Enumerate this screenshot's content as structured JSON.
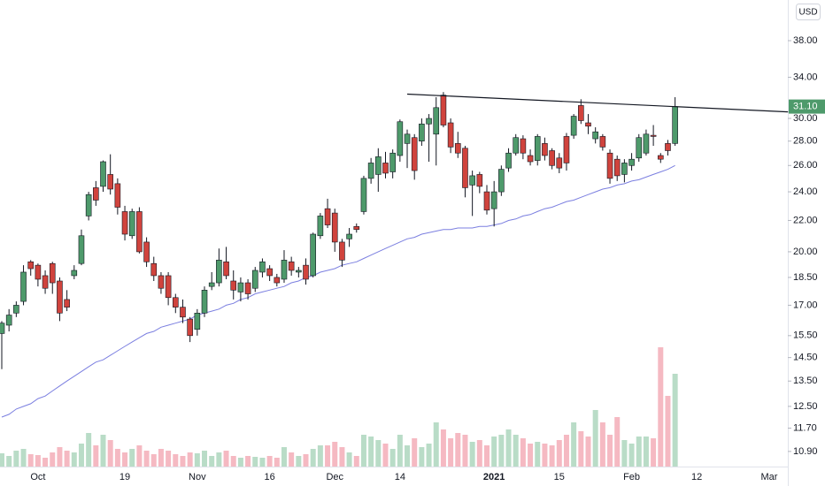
{
  "chart_data": {
    "type": "candlestick",
    "currency": "USD",
    "categories": [
      null,
      null,
      null,
      null,
      null,
      "Oct",
      null,
      null,
      null,
      null,
      null,
      null,
      null,
      null,
      null,
      null,
      null,
      "19",
      null,
      null,
      null,
      null,
      null,
      null,
      null,
      null,
      null,
      "Nov",
      null,
      null,
      null,
      null,
      null,
      null,
      null,
      null,
      null,
      "16",
      null,
      null,
      null,
      null,
      null,
      null,
      null,
      null,
      "Dec",
      null,
      null,
      null,
      null,
      null,
      null,
      null,
      null,
      "14",
      null,
      null,
      null,
      null,
      null,
      null,
      null,
      null,
      null,
      null,
      null,
      null,
      "2021",
      null,
      null,
      null,
      null,
      null,
      null,
      null,
      null,
      "15",
      null,
      null,
      null,
      null,
      null,
      null,
      null,
      null,
      null,
      "Feb",
      null,
      null,
      null,
      null,
      null,
      null,
      null,
      null,
      "12",
      null,
      null,
      null,
      null,
      null,
      null,
      null,
      null,
      null,
      "Mar",
      null,
      null
    ],
    "open": [
      15.6,
      16.0,
      16.6,
      17.2,
      19.4,
      19.2,
      18.6,
      19.3,
      18.3,
      17.3,
      18.6,
      19.3,
      22.3,
      24.3,
      24.4,
      25.3,
      24.6,
      22.6,
      21.0,
      22.6,
      20.6,
      19.3,
      18.6,
      18.6,
      17.4,
      16.9,
      16.3,
      15.8,
      16.6,
      18.0,
      18.2,
      19.4,
      18.3,
      17.7,
      18.2,
      17.9,
      18.8,
      19.0,
      18.5,
      18.4,
      19.4,
      18.8,
      19.2,
      18.6,
      21.0,
      22.8,
      22.5,
      20.6,
      20.8,
      21.6,
      22.6,
      25.0,
      25.3,
      26.2,
      25.5,
      26.8,
      27.8,
      28.3,
      28.0,
      29.5,
      28.6,
      32.2,
      29.6,
      27.8,
      27.4,
      24.5,
      25.3,
      24.0,
      22.8,
      24.0,
      25.8,
      27.0,
      28.2,
      26.8,
      26.4,
      27.8,
      27.2,
      26.6,
      28.4,
      28.5,
      31.2,
      29.6,
      28.2,
      28.4,
      27.0,
      26.5,
      25.3,
      26.0,
      26.6,
      27.0,
      28.5,
      26.8,
      27.8,
      27.8,
      null,
      null,
      null,
      null,
      null,
      null,
      null,
      null,
      null,
      null,
      null,
      null,
      null,
      null,
      null
    ],
    "high": [
      16.2,
      16.8,
      17.2,
      19.2,
      19.5,
      19.3,
      18.9,
      19.4,
      18.5,
      17.8,
      19.2,
      21.4,
      24.0,
      24.8,
      26.4,
      26.9,
      25.0,
      23.0,
      22.8,
      22.9,
      20.9,
      19.7,
      18.8,
      18.8,
      17.6,
      17.3,
      16.4,
      16.8,
      18.0,
      18.8,
      20.2,
      20.3,
      18.9,
      18.5,
      18.4,
      19.1,
      19.6,
      19.2,
      18.7,
      20.1,
      19.7,
      19.1,
      19.6,
      21.2,
      22.5,
      23.5,
      22.8,
      20.8,
      21.5,
      21.8,
      25.2,
      26.6,
      27.4,
      27.1,
      27.3,
      29.9,
      29.0,
      28.6,
      30.0,
      30.4,
      32.0,
      32.5,
      30.0,
      28.8,
      27.6,
      25.6,
      25.5,
      24.5,
      24.8,
      26.0,
      27.4,
      28.6,
      28.5,
      27.3,
      28.6,
      28.3,
      27.4,
      27.0,
      28.7,
      30.4,
      31.8,
      30.4,
      29.2,
      28.6,
      27.3,
      26.8,
      26.5,
      27.0,
      28.6,
      29.0,
      29.4,
      27.0,
      28.1,
      32.0,
      null,
      null,
      null,
      null,
      null,
      null,
      null,
      null,
      null,
      null,
      null,
      null,
      null,
      null,
      null
    ],
    "low": [
      14.0,
      15.7,
      16.4,
      17.0,
      18.6,
      18.0,
      17.6,
      17.6,
      16.2,
      16.7,
      18.4,
      19.2,
      22.0,
      23.0,
      24.0,
      23.8,
      22.4,
      20.7,
      20.8,
      19.9,
      19.1,
      18.3,
      17.6,
      17.0,
      16.6,
      16.1,
      15.2,
      15.5,
      16.4,
      17.8,
      18.0,
      18.4,
      17.3,
      17.2,
      17.3,
      17.7,
      18.5,
      18.3,
      18.0,
      18.2,
      18.6,
      18.5,
      18.1,
      18.5,
      20.8,
      21.5,
      20.0,
      19.1,
      20.3,
      21.2,
      22.4,
      24.6,
      24.0,
      25.0,
      25.0,
      26.3,
      25.8,
      24.9,
      27.6,
      26.3,
      26.0,
      29.2,
      27.0,
      26.6,
      23.6,
      22.3,
      23.9,
      22.4,
      21.6,
      23.7,
      25.5,
      26.8,
      26.5,
      26.0,
      26.0,
      26.4,
      25.7,
      25.4,
      25.6,
      28.2,
      29.5,
      28.6,
      27.8,
      27.2,
      24.6,
      24.8,
      24.7,
      25.6,
      26.3,
      26.8,
      27.6,
      26.2,
      26.8,
      27.6,
      null,
      null,
      null,
      null,
      null,
      null,
      null,
      null,
      null,
      null,
      null,
      null,
      null,
      null,
      null
    ],
    "close": [
      16.1,
      16.5,
      17.0,
      18.8,
      19.0,
      18.4,
      17.9,
      18.2,
      16.6,
      16.9,
      18.9,
      21.0,
      23.8,
      23.4,
      26.3,
      24.2,
      22.9,
      21.1,
      22.6,
      20.0,
      19.4,
      18.6,
      17.9,
      17.4,
      16.9,
      16.4,
      15.5,
      16.6,
      17.8,
      18.2,
      19.5,
      18.6,
      17.8,
      18.2,
      17.6,
      18.9,
      19.4,
      18.6,
      18.2,
      19.5,
      18.9,
      18.9,
      18.4,
      21.1,
      22.3,
      21.7,
      20.6,
      19.5,
      21.1,
      21.4,
      25.0,
      26.2,
      26.7,
      25.4,
      27.0,
      29.7,
      28.6,
      25.6,
      29.5,
      30.0,
      31.0,
      29.4,
      27.5,
      27.0,
      24.3,
      25.2,
      24.4,
      22.7,
      24.0,
      25.7,
      27.0,
      28.3,
      27.0,
      26.3,
      28.4,
      26.8,
      26.0,
      25.8,
      26.2,
      30.2,
      29.8,
      29.3,
      28.8,
      27.5,
      25.0,
      25.2,
      26.2,
      26.5,
      28.3,
      28.6,
      28.4,
      26.5,
      27.2,
      31.1,
      null,
      null,
      null,
      null,
      null,
      null,
      null,
      null,
      null,
      null,
      null,
      null,
      null,
      null,
      null
    ],
    "volume": [
      1.5,
      1.2,
      1.8,
      2.0,
      1.4,
      1.3,
      1.0,
      1.6,
      2.2,
      1.8,
      1.6,
      2.6,
      3.8,
      2.4,
      3.6,
      3.0,
      2.0,
      1.6,
      2.0,
      2.4,
      1.8,
      1.4,
      2.0,
      1.8,
      1.4,
      1.2,
      1.6,
      1.5,
      1.8,
      1.2,
      1.6,
      1.8,
      1.2,
      1.0,
      1.2,
      1.1,
      1.0,
      1.2,
      1.0,
      2.2,
      1.6,
      1.2,
      1.4,
      2.0,
      2.4,
      2.4,
      2.8,
      2.2,
      1.6,
      1.2,
      3.6,
      3.4,
      3.0,
      2.6,
      2.0,
      3.6,
      2.4,
      3.2,
      2.2,
      2.6,
      5.0,
      4.2,
      3.2,
      3.8,
      3.6,
      2.8,
      3.0,
      2.4,
      3.4,
      3.6,
      4.2,
      3.6,
      3.2,
      2.6,
      2.8,
      2.6,
      2.4,
      3.0,
      3.6,
      5.0,
      4.0,
      3.4,
      6.4,
      5.0,
      3.6,
      5.6,
      3.0,
      2.6,
      3.4,
      3.4,
      3.2,
      13.5,
      8.0,
      10.5,
      null,
      null,
      null,
      null,
      null,
      null,
      null,
      null,
      null,
      null,
      null,
      null,
      null,
      null,
      null
    ],
    "moving_average": {
      "color": "#7b7fe0",
      "values": [
        12.1,
        12.2,
        12.4,
        12.5,
        12.6,
        12.8,
        12.9,
        13.1,
        13.3,
        13.5,
        13.7,
        13.9,
        14.1,
        14.3,
        14.4,
        14.6,
        14.8,
        15.0,
        15.2,
        15.4,
        15.6,
        15.7,
        15.9,
        16.0,
        16.1,
        16.2,
        16.3,
        16.5,
        16.6,
        16.7,
        16.8,
        17.0,
        17.1,
        17.3,
        17.4,
        17.6,
        17.7,
        17.8,
        17.9,
        18.0,
        18.2,
        18.3,
        18.5,
        18.6,
        18.8,
        18.9,
        19.0,
        19.2,
        19.3,
        19.4,
        19.6,
        19.8,
        20.0,
        20.2,
        20.4,
        20.6,
        20.8,
        20.9,
        21.1,
        21.2,
        21.3,
        21.4,
        21.4,
        21.5,
        21.5,
        21.5,
        21.6,
        21.6,
        21.7,
        21.8,
        22.0,
        22.1,
        22.3,
        22.4,
        22.6,
        22.8,
        22.9,
        23.1,
        23.3,
        23.4,
        23.6,
        23.8,
        24.0,
        24.2,
        24.3,
        24.5,
        24.6,
        24.8,
        24.9,
        25.1,
        25.3,
        25.5,
        25.7,
        26.0,
        null,
        null,
        null,
        null,
        null,
        null,
        null,
        null,
        null,
        null,
        null,
        null,
        null,
        null,
        null
      ]
    },
    "trendline": {
      "color": "#131722",
      "x": [
        56,
        108.6
      ],
      "values": [
        32.3,
        30.6
      ]
    },
    "last_price": {
      "value": 31.1,
      "label": "31.10"
    },
    "up_color": "#4e9a6b",
    "down_color": "#d0433d",
    "volume_up_color": "#b9dcc7",
    "volume_down_color": "#f5b9c2",
    "log_scale": true,
    "ylim": [
      10.41,
      43.0
    ],
    "yticks": [
      {
        "value": 38,
        "label": "38.00"
      },
      {
        "value": 34,
        "label": "34.00"
      },
      {
        "value": 30,
        "label": "30.00"
      },
      {
        "value": 28,
        "label": "28.00"
      },
      {
        "value": 26,
        "label": "26.00"
      },
      {
        "value": 24,
        "label": "24.00"
      },
      {
        "value": 22,
        "label": "22.00"
      },
      {
        "value": 20,
        "label": "20.00"
      },
      {
        "value": 18.5,
        "label": "18.50"
      },
      {
        "value": 17,
        "label": "17.00"
      },
      {
        "value": 15.5,
        "label": "15.50"
      },
      {
        "value": 14.5,
        "label": "14.50"
      },
      {
        "value": 13.5,
        "label": "13.50"
      },
      {
        "value": 12.5,
        "label": "12.50"
      },
      {
        "value": 11.7,
        "label": "11.70"
      },
      {
        "value": 10.9,
        "label": "10.90"
      }
    ]
  }
}
